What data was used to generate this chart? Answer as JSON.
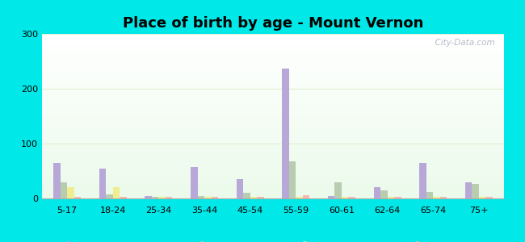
{
  "title": "Place of birth by age - Mount Vernon",
  "categories": [
    "5-17",
    "18-24",
    "25-34",
    "35-44",
    "45-54",
    "55-59",
    "60-61",
    "62-64",
    "65-74",
    "75+"
  ],
  "series": {
    "Born in state of residence": [
      65,
      55,
      5,
      58,
      35,
      237,
      5,
      20,
      65,
      30
    ],
    "Born in other state": [
      30,
      7,
      3,
      4,
      10,
      68,
      30,
      14,
      12,
      27
    ],
    "Native, outside of US": [
      20,
      20,
      3,
      3,
      3,
      3,
      3,
      3,
      3,
      3
    ],
    "Foreign-born": [
      3,
      3,
      3,
      3,
      3,
      6,
      3,
      3,
      3,
      3
    ]
  },
  "colors": {
    "Born in state of residence": "#b8a8d8",
    "Born in other state": "#b8ccb0",
    "Native, outside of US": "#eeee90",
    "Foreign-born": "#f4b8b0"
  },
  "ylim": [
    0,
    300
  ],
  "yticks": [
    0,
    100,
    200,
    300
  ],
  "outer_bg": "#00e8e8",
  "watermark": "  City-Data.com",
  "bar_width": 0.15,
  "title_fontsize": 13,
  "legend_fontsize": 8,
  "tick_fontsize": 8,
  "grid_color": "#ddeecc",
  "grid_alpha": 0.9
}
